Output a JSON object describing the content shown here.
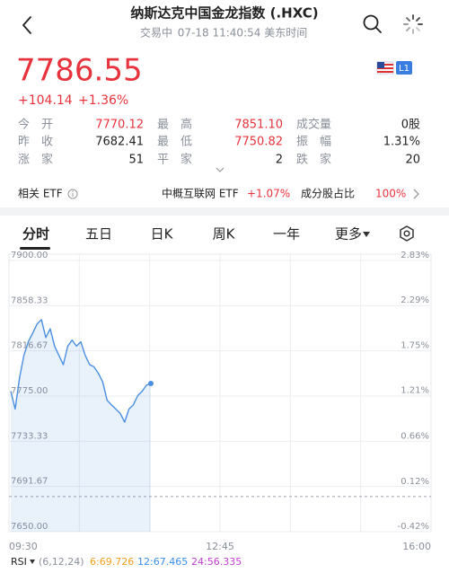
{
  "header": {
    "title": "纳斯达克中国金龙指数 (.HXC)",
    "status": "交易中",
    "time": "07-18 11:40:54 美东时间"
  },
  "quote": {
    "price": "7786.55",
    "change": "+104.14",
    "change_pct": "+1.36%",
    "badge": "L1"
  },
  "stats": {
    "rows": [
      [
        {
          "label": "今开",
          "value": "7770.12",
          "up": true
        },
        {
          "label": "最高",
          "value": "7851.10",
          "up": true
        },
        {
          "label": "成交量",
          "value": "0股",
          "up": false
        }
      ],
      [
        {
          "label": "昨收",
          "value": "7682.41",
          "up": false
        },
        {
          "label": "最低",
          "value": "7750.82",
          "up": true
        },
        {
          "label": "振幅",
          "value": "1.31%",
          "up": false
        }
      ],
      [
        {
          "label": "涨家",
          "value": "51",
          "up": false
        },
        {
          "label": "平家",
          "value": "2",
          "up": false
        },
        {
          "label": "跌家",
          "value": "20",
          "up": false
        }
      ]
    ]
  },
  "etf": {
    "label": "相关 ETF",
    "name": "中概互联网 ETF",
    "change": "+1.07%",
    "share_label": "成分股占比",
    "share": "100%"
  },
  "tabs": [
    "分时",
    "五日",
    "日K",
    "周K",
    "一年",
    "更多"
  ],
  "chart_data": {
    "type": "line",
    "color": "#4a8fe0",
    "values": [
      7779.5,
      7763,
      7792,
      7812.5,
      7825,
      7833,
      7841.4,
      7845.5,
      7829,
      7837,
      7821,
      7812.5,
      7804,
      7821,
      7826.6,
      7821,
      7825,
      7812.5,
      7804,
      7802,
      7796,
      7788,
      7771,
      7767,
      7763,
      7759,
      7751,
      7763,
      7767,
      7775.4,
      7779.5,
      7785,
      7786.55
    ],
    "prev_close": 7682.41,
    "ylim": [
      7650,
      7900
    ],
    "yticks": [
      {
        "value": 7900,
        "label": "7900.00"
      },
      {
        "value": 7858.33,
        "label": "7858.33"
      },
      {
        "value": 7816.67,
        "label": "7816.67"
      },
      {
        "value": 7775,
        "label": "7775.00"
      },
      {
        "value": 7733.33,
        "label": "7733.33"
      },
      {
        "value": 7691.67,
        "label": "7691.67"
      },
      {
        "value": 7650,
        "label": "7650.00"
      }
    ],
    "y2lim": [
      -0.42,
      2.83
    ],
    "y2ticks": [
      {
        "value": 2.83,
        "label": "2.83%"
      },
      {
        "value": 2.29,
        "label": "2.29%"
      },
      {
        "value": 1.75,
        "label": "1.75%"
      },
      {
        "value": 1.21,
        "label": "1.21%"
      },
      {
        "value": 0.66,
        "label": "0.66%"
      },
      {
        "value": 0.12,
        "label": "0.12%"
      },
      {
        "value": -0.42,
        "label": "-0.42%"
      }
    ],
    "x_labels": [
      "09:30",
      "12:45",
      "16:00"
    ],
    "grid": true
  },
  "rsi": {
    "label": "RSI",
    "params": "(6,12,24)",
    "lines": [
      {
        "text": "6:69.726",
        "color": "#f0a020"
      },
      {
        "text": "12:67.465",
        "color": "#3a8ee6"
      },
      {
        "text": "24:56.335",
        "color": "#c040d0"
      }
    ]
  }
}
